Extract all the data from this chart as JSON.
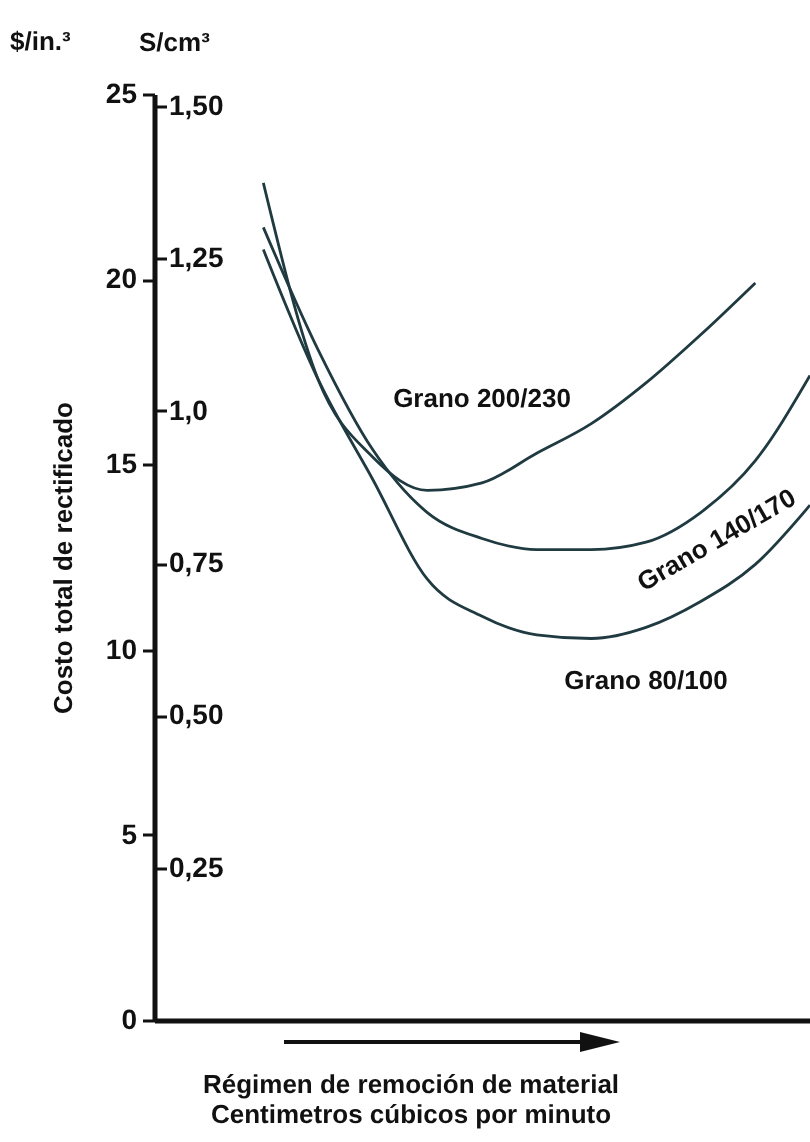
{
  "chart_data": {
    "type": "line",
    "ylabel": "Costo total de rectificado",
    "y2label": "S/cm³",
    "xlabel": "Régimen de remoción de material\nCentimetros cúbicos por minuto",
    "annotations": [
      "$/in.³"
    ],
    "categories": [
      null,
      null,
      null,
      null,
      null,
      null,
      null,
      null,
      null,
      null,
      null,
      null,
      null
    ],
    "series": [
      {
        "name": "Grano 200/230",
        "color": "#1f3a40",
        "values": [
          null,
          null,
          22.6,
          17.3,
          15.2,
          14.3,
          14.5,
          15.3,
          16.1,
          17.2,
          18.5,
          19.9,
          null
        ]
      },
      {
        "name": "Grano 140/170",
        "color": "#1f3a40",
        "values": [
          null,
          null,
          21.4,
          18.1,
          15.4,
          13.7,
          13.0,
          12.7,
          12.7,
          12.9,
          13.7,
          15.1,
          17.4
        ]
      },
      {
        "name": "Grano 80/100",
        "color": "#1f3a40",
        "values": [
          null,
          null,
          20.8,
          17.3,
          14.6,
          11.9,
          10.9,
          10.4,
          10.3,
          10.6,
          11.3,
          12.3,
          13.9
        ]
      }
    ],
    "ylim": [
      0,
      25
    ],
    "yticks": [
      0,
      5,
      10,
      15,
      20,
      25
    ],
    "y2lim": [
      0,
      1.52
    ],
    "y2ticks": [
      {
        "value": 0.25,
        "label": "0,25"
      },
      {
        "value": 0.5,
        "label": "0,50"
      },
      {
        "value": 0.75,
        "label": "0,75"
      },
      {
        "value": 1.0,
        "label": "1,0"
      },
      {
        "value": 1.25,
        "label": "1,25"
      },
      {
        "value": 1.5,
        "label": "1,50"
      }
    ],
    "legend": false,
    "grid": false,
    "line_style": "solid",
    "marker": "none"
  }
}
